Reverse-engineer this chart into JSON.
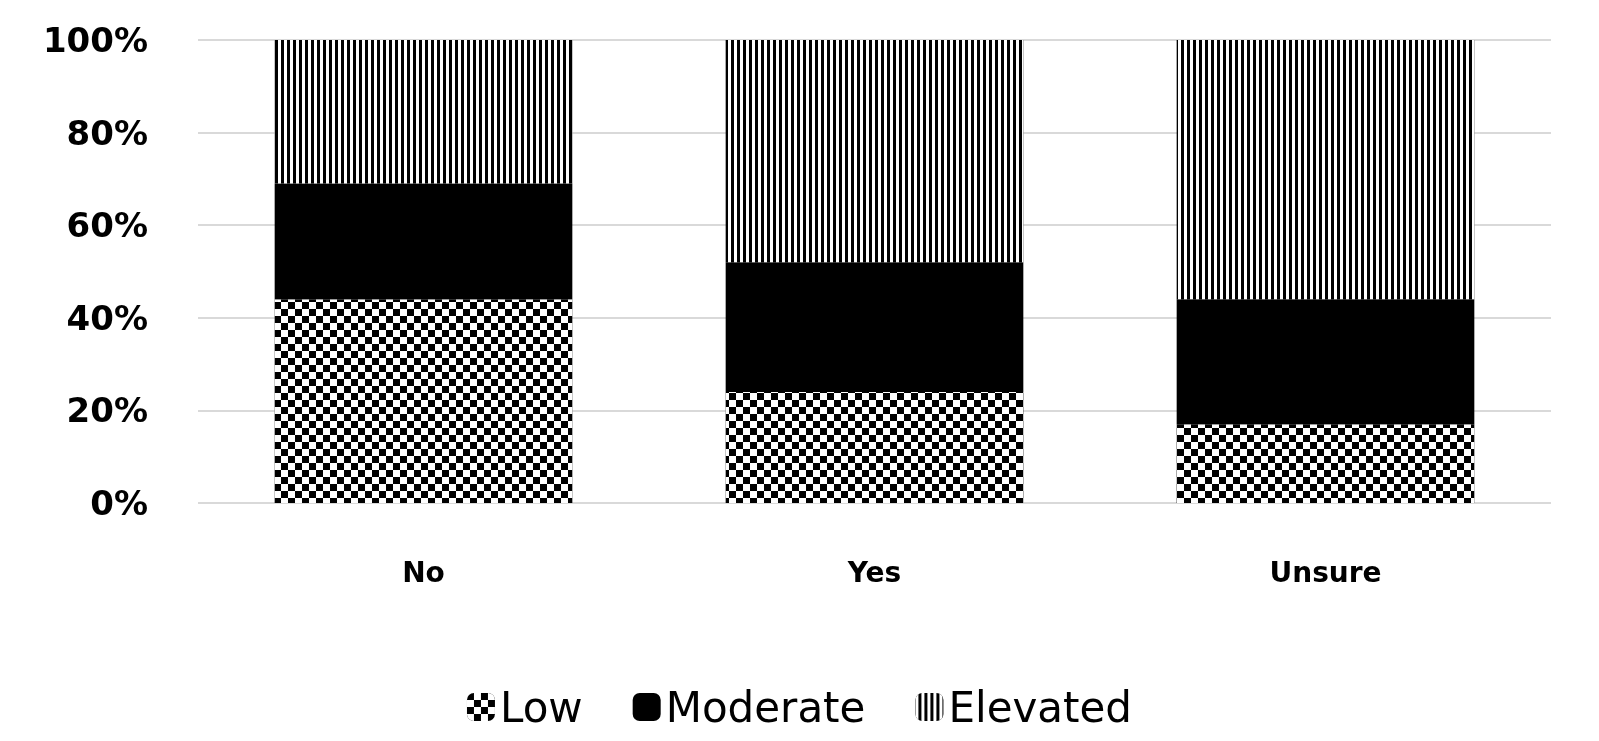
{
  "chart_data": {
    "type": "bar",
    "stacked": true,
    "categories": [
      "No",
      "Yes",
      "Unsure"
    ],
    "series": [
      {
        "name": "Low",
        "color": "#000000",
        "values": [
          44,
          24,
          17
        ]
      },
      {
        "name": "Moderate",
        "color": "#000000",
        "values": [
          25,
          28,
          27
        ]
      },
      {
        "name": "Elevated",
        "color": "#000000",
        "values": [
          31,
          48,
          56
        ]
      }
    ],
    "ylim": [
      0,
      100
    ],
    "yticks": [
      {
        "value": 0,
        "label": "0%"
      },
      {
        "value": 20,
        "label": "20%"
      },
      {
        "value": 40,
        "label": "40%"
      },
      {
        "value": 60,
        "label": "60%"
      },
      {
        "value": 80,
        "label": "80%"
      },
      {
        "value": 100,
        "label": "100%"
      }
    ],
    "grid": "y",
    "legend": "bottom"
  }
}
